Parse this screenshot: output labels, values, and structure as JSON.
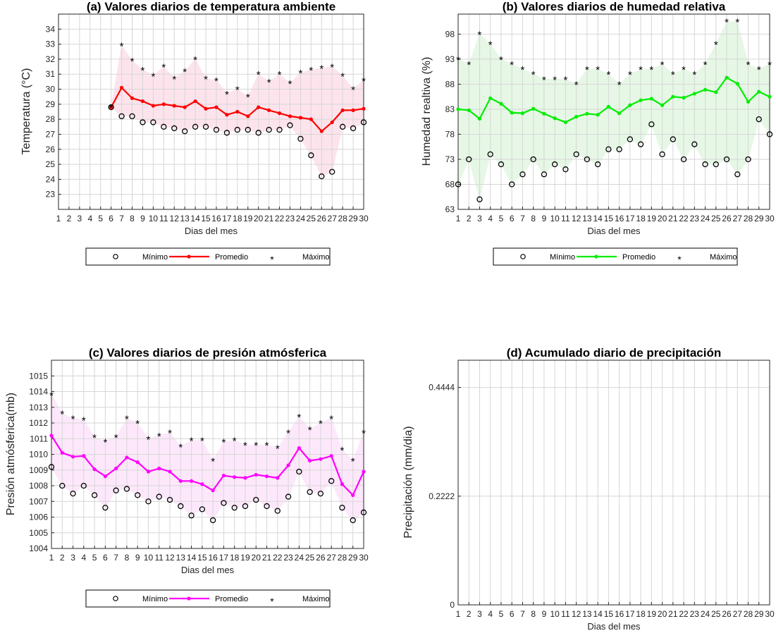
{
  "chart_data": [
    {
      "id": "a",
      "type": "line",
      "title": "(a) Valores diarios de temperatura ambiente",
      "xlabel": "Dias del mes",
      "ylabel": "Temperatura (°C)",
      "xlim": [
        1,
        30
      ],
      "ylim": [
        22,
        35
      ],
      "yticks": [
        23,
        24,
        25,
        26,
        27,
        28,
        29,
        30,
        31,
        32,
        33,
        34
      ],
      "grid": true,
      "band": true,
      "colors": {
        "mean": "#ff0000",
        "band": "#fde2ea"
      },
      "x": [
        1,
        2,
        3,
        4,
        5,
        6,
        7,
        8,
        9,
        10,
        11,
        12,
        13,
        14,
        15,
        16,
        17,
        18,
        19,
        20,
        21,
        22,
        23,
        24,
        25,
        26,
        27,
        28,
        29,
        30
      ],
      "series": [
        {
          "name": "Mínimo",
          "values": [
            null,
            null,
            null,
            null,
            null,
            28.8,
            28.2,
            28.2,
            27.8,
            27.8,
            27.5,
            27.4,
            27.2,
            27.5,
            27.5,
            27.3,
            27.1,
            27.3,
            27.3,
            27.1,
            27.3,
            27.3,
            27.6,
            26.7,
            25.6,
            24.2,
            24.5,
            27.5,
            27.4,
            27.8
          ]
        },
        {
          "name": "Promedio",
          "values": [
            null,
            null,
            null,
            null,
            null,
            28.8,
            30.1,
            29.4,
            29.2,
            28.9,
            29.0,
            28.9,
            28.8,
            29.2,
            28.7,
            28.8,
            28.3,
            28.5,
            28.2,
            28.8,
            28.6,
            28.4,
            28.2,
            28.1,
            28.0,
            27.2,
            27.8,
            28.6,
            28.6,
            28.7
          ]
        },
        {
          "name": "Máximo",
          "values": [
            null,
            null,
            null,
            null,
            null,
            28.8,
            32.9,
            31.9,
            31.3,
            30.9,
            31.5,
            30.7,
            31.2,
            32.0,
            30.7,
            30.6,
            29.7,
            30.0,
            29.5,
            31.0,
            30.5,
            31.0,
            30.4,
            31.1,
            31.3,
            31.4,
            31.5,
            30.9,
            30.0,
            30.6
          ]
        }
      ],
      "legend": {
        "placement": "bottom",
        "entries": [
          "Mínimo",
          "Promedio",
          "Máximo"
        ]
      }
    },
    {
      "id": "b",
      "type": "line",
      "title": "(b) Valores diarios de humedad relativa",
      "xlabel": "Dias del mes",
      "ylabel": "Humedad realtiva (%)",
      "xlim": [
        1,
        30
      ],
      "ylim": [
        63,
        102
      ],
      "yticks": [
        63,
        68,
        73,
        78,
        83,
        88,
        93,
        98
      ],
      "grid": true,
      "band": true,
      "colors": {
        "mean": "#00ee00",
        "band": "#e4f7e4"
      },
      "x": [
        1,
        2,
        3,
        4,
        5,
        6,
        7,
        8,
        9,
        10,
        11,
        12,
        13,
        14,
        15,
        16,
        17,
        18,
        19,
        20,
        21,
        22,
        23,
        24,
        25,
        26,
        27,
        28,
        29,
        30
      ],
      "series": [
        {
          "name": "Mínimo",
          "values": [
            68,
            73,
            65,
            74,
            72,
            68,
            70,
            73,
            70,
            72,
            71,
            74,
            73,
            72,
            75,
            75,
            77,
            76,
            80,
            74,
            77,
            73,
            76,
            72,
            72,
            73,
            70,
            73,
            81,
            78
          ]
        },
        {
          "name": "Promedio",
          "values": [
            83,
            82.8,
            81.1,
            85.2,
            84.1,
            82.3,
            82.2,
            83.1,
            82.1,
            81.2,
            80.4,
            81.5,
            82.1,
            81.9,
            83.5,
            82.2,
            83.8,
            84.8,
            85.1,
            83.8,
            85.5,
            85.3,
            86.1,
            86.9,
            86.4,
            89.3,
            88.1,
            84.5,
            86.5,
            85.5
          ]
        },
        {
          "name": "Máximo",
          "values": [
            93,
            92,
            98,
            96,
            93,
            92,
            91,
            90,
            89,
            89,
            89,
            88,
            91,
            91,
            90,
            88,
            90,
            91,
            91,
            92,
            90,
            91,
            90,
            92,
            96,
            100.5,
            100.5,
            92,
            91,
            92
          ]
        }
      ],
      "legend": {
        "placement": "bottom",
        "entries": [
          "Mínimo",
          "Promedio",
          "Máximo"
        ]
      }
    },
    {
      "id": "c",
      "type": "line",
      "title": "(c) Valores diarios de presión atmósferica",
      "xlabel": "Dias del mes",
      "ylabel": "Presión atmósferica(mb)",
      "xlim": [
        1,
        30
      ],
      "ylim": [
        1004,
        1016
      ],
      "yticks": [
        1004,
        1005,
        1006,
        1007,
        1008,
        1009,
        1010,
        1011,
        1012,
        1013,
        1014,
        1015
      ],
      "grid": true,
      "band": true,
      "colors": {
        "mean": "#ff00ff",
        "band": "#fde6fb"
      },
      "x": [
        1,
        2,
        3,
        4,
        5,
        6,
        7,
        8,
        9,
        10,
        11,
        12,
        13,
        14,
        15,
        16,
        17,
        18,
        19,
        20,
        21,
        22,
        23,
        24,
        25,
        26,
        27,
        28,
        29,
        30
      ],
      "series": [
        {
          "name": "Mínimo",
          "values": [
            1009.2,
            1008.0,
            1007.5,
            1008.0,
            1007.4,
            1006.6,
            1007.7,
            1007.8,
            1007.4,
            1007.0,
            1007.3,
            1007.1,
            1006.7,
            1006.1,
            1006.5,
            1005.8,
            1006.9,
            1006.6,
            1006.7,
            1007.1,
            1006.7,
            1006.4,
            1007.3,
            1008.9,
            1007.6,
            1007.5,
            1008.3,
            1006.6,
            1005.8,
            1006.3
          ]
        },
        {
          "name": "Promedio",
          "values": [
            1011.2,
            1010.1,
            1009.85,
            1009.9,
            1009.05,
            1008.6,
            1009.1,
            1009.8,
            1009.5,
            1008.9,
            1009.1,
            1008.9,
            1008.3,
            1008.3,
            1008.1,
            1007.7,
            1008.65,
            1008.55,
            1008.5,
            1008.7,
            1008.6,
            1008.5,
            1009.3,
            1010.4,
            1009.6,
            1009.7,
            1009.9,
            1008.1,
            1007.4,
            1008.9
          ]
        },
        {
          "name": "Máximo",
          "values": [
            1013.8,
            1012.6,
            1012.3,
            1012.2,
            1011.1,
            1010.8,
            1011.1,
            1012.3,
            1012.0,
            1011.0,
            1011.2,
            1011.4,
            1010.5,
            1010.9,
            1010.9,
            1009.6,
            1010.8,
            1010.9,
            1010.6,
            1010.6,
            1010.6,
            1010.4,
            1011.4,
            1012.4,
            1011.6,
            1012.0,
            1012.3,
            1010.3,
            1009.6,
            1011.4
          ]
        }
      ],
      "legend": {
        "placement": "bottom",
        "entries": [
          "Mínimo",
          "Promedio",
          "Máximo"
        ]
      }
    },
    {
      "id": "d",
      "type": "bar",
      "title": "(d) Acumulado diario de precipitación",
      "xlabel": "Dias del mes",
      "ylabel": "Precipitación (mm/dia)",
      "xlim": [
        1,
        30
      ],
      "ylim": [
        0,
        0.5
      ],
      "yticks": [
        0,
        0.2222,
        0.4444
      ],
      "grid": true,
      "x": [
        1,
        2,
        3,
        4,
        5,
        6,
        7,
        8,
        9,
        10,
        11,
        12,
        13,
        14,
        15,
        16,
        17,
        18,
        19,
        20,
        21,
        22,
        23,
        24,
        25,
        26,
        27,
        28,
        29,
        30
      ],
      "values": [
        0,
        0,
        0,
        0,
        0,
        0,
        0,
        0,
        0,
        0,
        0,
        0,
        0,
        0,
        0,
        0,
        0,
        0,
        0,
        0,
        0,
        0,
        0,
        0,
        0,
        0,
        0,
        0,
        0,
        0
      ]
    }
  ]
}
